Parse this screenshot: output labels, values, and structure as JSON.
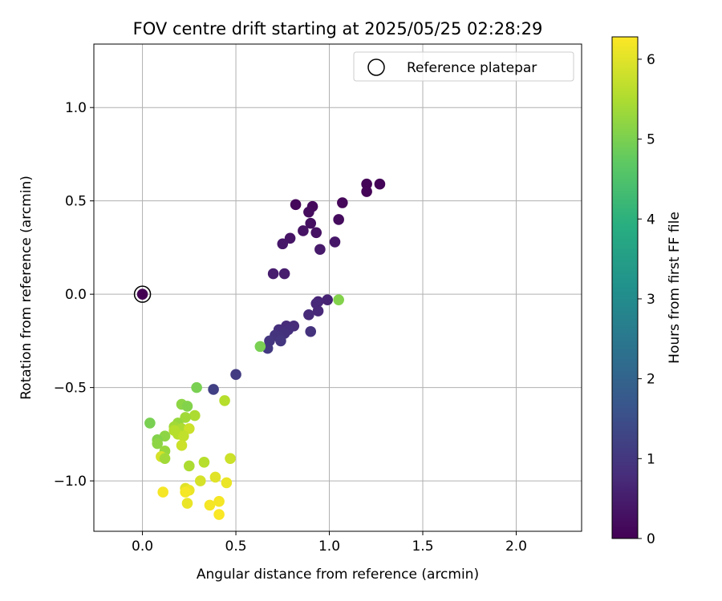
{
  "chart_data": {
    "type": "scatter",
    "title": "FOV centre drift starting at 2025/05/25 02:28:29",
    "xlabel": "Angular distance from reference (arcmin)",
    "ylabel": "Rotation from reference (arcmin)",
    "xlim": [
      -0.26,
      2.35
    ],
    "ylim": [
      -1.27,
      1.34
    ],
    "xticks": [
      0.0,
      0.5,
      1.0,
      1.5,
      2.0
    ],
    "xtick_labels": [
      "0.0",
      "0.5",
      "1.0",
      "1.5",
      "2.0"
    ],
    "yticks": [
      -1.0,
      -0.5,
      0.0,
      0.5,
      1.0
    ],
    "ytick_labels": [
      "−1.0",
      "−0.5",
      "0.0",
      "0.5",
      "1.0"
    ],
    "grid": true,
    "legend": {
      "position": "top-right",
      "label": "Reference platepar"
    },
    "colorbar": {
      "label": "Hours from first FF file",
      "range": [
        0,
        6.28
      ],
      "ticks": [
        0,
        1,
        2,
        3,
        4,
        5,
        6
      ],
      "tick_labels": [
        "0",
        "1",
        "2",
        "3",
        "4",
        "5",
        "6"
      ],
      "colormap": "viridis"
    },
    "reference_point": {
      "x": 0.0,
      "y": 0.0,
      "c": 0.0
    },
    "points": [
      {
        "x": 1.2,
        "y": 0.59,
        "c": 0.05
      },
      {
        "x": 1.27,
        "y": 0.59,
        "c": 0.05
      },
      {
        "x": 1.2,
        "y": 0.55,
        "c": 0.05
      },
      {
        "x": 1.07,
        "y": 0.49,
        "c": 0.1
      },
      {
        "x": 0.82,
        "y": 0.48,
        "c": 0.1
      },
      {
        "x": 0.91,
        "y": 0.47,
        "c": 0.15
      },
      {
        "x": 0.89,
        "y": 0.44,
        "c": 0.2
      },
      {
        "x": 1.05,
        "y": 0.4,
        "c": 0.2
      },
      {
        "x": 0.9,
        "y": 0.38,
        "c": 0.25
      },
      {
        "x": 0.86,
        "y": 0.34,
        "c": 0.3
      },
      {
        "x": 0.93,
        "y": 0.33,
        "c": 0.3
      },
      {
        "x": 0.79,
        "y": 0.3,
        "c": 0.35
      },
      {
        "x": 1.03,
        "y": 0.28,
        "c": 0.4
      },
      {
        "x": 0.75,
        "y": 0.27,
        "c": 0.4
      },
      {
        "x": 0.95,
        "y": 0.24,
        "c": 0.45
      },
      {
        "x": 0.7,
        "y": 0.11,
        "c": 0.5
      },
      {
        "x": 0.76,
        "y": 0.11,
        "c": 0.5
      },
      {
        "x": 0.99,
        "y": -0.03,
        "c": 0.6
      },
      {
        "x": 0.94,
        "y": -0.04,
        "c": 0.65
      },
      {
        "x": 0.93,
        "y": -0.05,
        "c": 0.7
      },
      {
        "x": 0.94,
        "y": -0.09,
        "c": 0.7
      },
      {
        "x": 0.89,
        "y": -0.11,
        "c": 0.75
      },
      {
        "x": 0.77,
        "y": -0.17,
        "c": 0.8
      },
      {
        "x": 0.81,
        "y": -0.17,
        "c": 0.8
      },
      {
        "x": 0.73,
        "y": -0.19,
        "c": 0.85
      },
      {
        "x": 0.78,
        "y": -0.19,
        "c": 0.85
      },
      {
        "x": 0.9,
        "y": -0.2,
        "c": 0.9
      },
      {
        "x": 0.76,
        "y": -0.21,
        "c": 0.9
      },
      {
        "x": 0.73,
        "y": -0.23,
        "c": 0.95
      },
      {
        "x": 0.71,
        "y": -0.22,
        "c": 0.95
      },
      {
        "x": 0.74,
        "y": -0.25,
        "c": 1.0
      },
      {
        "x": 0.68,
        "y": -0.25,
        "c": 1.0
      },
      {
        "x": 0.67,
        "y": -0.29,
        "c": 1.05
      },
      {
        "x": 0.5,
        "y": -0.43,
        "c": 1.1
      },
      {
        "x": 0.38,
        "y": -0.51,
        "c": 1.2
      },
      {
        "x": 1.05,
        "y": -0.03,
        "c": 5.1
      },
      {
        "x": 0.63,
        "y": -0.28,
        "c": 5.0
      },
      {
        "x": 0.29,
        "y": -0.5,
        "c": 5.0
      },
      {
        "x": 0.44,
        "y": -0.57,
        "c": 5.6
      },
      {
        "x": 0.21,
        "y": -0.59,
        "c": 5.2
      },
      {
        "x": 0.24,
        "y": -0.6,
        "c": 5.1
      },
      {
        "x": 0.28,
        "y": -0.65,
        "c": 5.5
      },
      {
        "x": 0.23,
        "y": -0.66,
        "c": 5.4
      },
      {
        "x": 0.04,
        "y": -0.69,
        "c": 5.0
      },
      {
        "x": 0.19,
        "y": -0.69,
        "c": 5.3
      },
      {
        "x": 0.17,
        "y": -0.71,
        "c": 5.4
      },
      {
        "x": 0.21,
        "y": -0.72,
        "c": 5.5
      },
      {
        "x": 0.25,
        "y": -0.72,
        "c": 5.8
      },
      {
        "x": 0.17,
        "y": -0.73,
        "c": 5.6
      },
      {
        "x": 0.19,
        "y": -0.75,
        "c": 5.6
      },
      {
        "x": 0.12,
        "y": -0.76,
        "c": 5.2
      },
      {
        "x": 0.22,
        "y": -0.76,
        "c": 5.7
      },
      {
        "x": 0.08,
        "y": -0.78,
        "c": 5.1
      },
      {
        "x": 0.08,
        "y": -0.8,
        "c": 5.2
      },
      {
        "x": 0.21,
        "y": -0.81,
        "c": 5.8
      },
      {
        "x": 0.12,
        "y": -0.84,
        "c": 5.3
      },
      {
        "x": 0.1,
        "y": -0.87,
        "c": 5.9
      },
      {
        "x": 0.12,
        "y": -0.88,
        "c": 5.4
      },
      {
        "x": 0.47,
        "y": -0.88,
        "c": 5.8
      },
      {
        "x": 0.33,
        "y": -0.9,
        "c": 5.6
      },
      {
        "x": 0.25,
        "y": -0.92,
        "c": 5.5
      },
      {
        "x": 0.39,
        "y": -0.98,
        "c": 6.0
      },
      {
        "x": 0.31,
        "y": -1.0,
        "c": 5.9
      },
      {
        "x": 0.45,
        "y": -1.01,
        "c": 6.1
      },
      {
        "x": 0.23,
        "y": -1.04,
        "c": 6.0
      },
      {
        "x": 0.25,
        "y": -1.05,
        "c": 6.1
      },
      {
        "x": 0.11,
        "y": -1.06,
        "c": 6.2
      },
      {
        "x": 0.23,
        "y": -1.06,
        "c": 6.2
      },
      {
        "x": 0.41,
        "y": -1.11,
        "c": 6.2
      },
      {
        "x": 0.24,
        "y": -1.12,
        "c": 6.1
      },
      {
        "x": 0.36,
        "y": -1.13,
        "c": 6.2
      },
      {
        "x": 0.41,
        "y": -1.18,
        "c": 6.25
      }
    ]
  }
}
